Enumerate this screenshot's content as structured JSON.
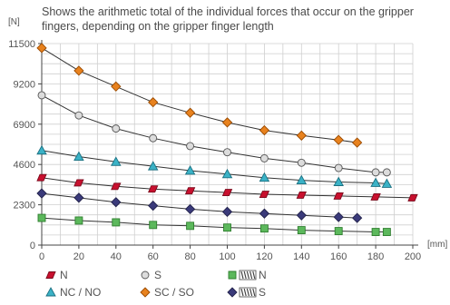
{
  "chart_data": {
    "type": "line",
    "annotation": "Shows the arithmetic total of the individual forces that occur on the gripper fingers, depending on the gripper finger length",
    "y_unit": "[N]",
    "x_unit": "[mm]",
    "xlim": [
      0,
      200
    ],
    "ylim": [
      0,
      11500
    ],
    "x_ticks": [
      0,
      20,
      40,
      60,
      80,
      100,
      120,
      140,
      160,
      180,
      200
    ],
    "y_ticks": [
      0,
      2300,
      4600,
      6900,
      9200,
      11500
    ],
    "grid": true,
    "legend_position": "bottom",
    "series": [
      {
        "name": "SC / SO",
        "marker": "diamond",
        "color": "#e8821e",
        "stroke": "#9a4a00",
        "x": [
          0,
          20,
          40,
          60,
          80,
          100,
          120,
          140,
          160,
          170
        ],
        "y": [
          11250,
          9950,
          9050,
          8150,
          7550,
          7000,
          6550,
          6250,
          6000,
          5850
        ]
      },
      {
        "name": "S",
        "marker": "circle",
        "color": "#dcdcdc",
        "stroke": "#555555",
        "x": [
          0,
          20,
          40,
          60,
          80,
          100,
          120,
          140,
          160,
          180,
          186
        ],
        "y": [
          8550,
          7400,
          6650,
          6100,
          5650,
          5300,
          4950,
          4700,
          4400,
          4150,
          4150
        ]
      },
      {
        "name": "NC / NO",
        "marker": "triangle",
        "color": "#3bb2c6",
        "stroke": "#1a6f80",
        "x": [
          0,
          20,
          40,
          60,
          80,
          100,
          120,
          140,
          160,
          180,
          186
        ],
        "y": [
          5400,
          5050,
          4750,
          4500,
          4250,
          4050,
          3850,
          3700,
          3600,
          3550,
          3500
        ]
      },
      {
        "name": "N",
        "marker": "parallelogram",
        "color": "#c8102e",
        "stroke": "#7a0a1c",
        "x": [
          0,
          20,
          40,
          60,
          80,
          100,
          120,
          140,
          160,
          180,
          200
        ],
        "y": [
          3850,
          3550,
          3350,
          3200,
          3100,
          3000,
          2900,
          2850,
          2800,
          2750,
          2700
        ]
      },
      {
        "name": "S",
        "marker": "diamond",
        "color": "#3a3a7a",
        "stroke": "#22224a",
        "x": [
          0,
          20,
          40,
          60,
          80,
          100,
          120,
          140,
          160,
          170
        ],
        "y": [
          2950,
          2700,
          2450,
          2250,
          2050,
          1900,
          1800,
          1700,
          1600,
          1550
        ]
      },
      {
        "name": "N",
        "marker": "square",
        "color": "#5cb85c",
        "stroke": "#2e7d2e",
        "x": [
          0,
          20,
          40,
          60,
          80,
          100,
          120,
          140,
          160,
          180,
          186
        ],
        "y": [
          1550,
          1400,
          1300,
          1150,
          1100,
          1000,
          950,
          850,
          800,
          750,
          750
        ]
      }
    ],
    "legend": [
      {
        "label": "N",
        "marker": "parallelogram",
        "color": "#c8102e",
        "stroke": "#7a0a1c",
        "spring_icon": false
      },
      {
        "label": "S",
        "marker": "circle",
        "color": "#dcdcdc",
        "stroke": "#555555",
        "spring_icon": false
      },
      {
        "label": "N",
        "marker": "square",
        "color": "#5cb85c",
        "stroke": "#2e7d2e",
        "spring_icon": true
      },
      {
        "label": "NC / NO",
        "marker": "triangle",
        "color": "#3bb2c6",
        "stroke": "#1a6f80",
        "spring_icon": false
      },
      {
        "label": "SC / SO",
        "marker": "diamond",
        "color": "#e8821e",
        "stroke": "#9a4a00",
        "spring_icon": false
      },
      {
        "label": "S",
        "marker": "diamond",
        "color": "#3a3a7a",
        "stroke": "#22224a",
        "spring_icon": true
      }
    ]
  }
}
